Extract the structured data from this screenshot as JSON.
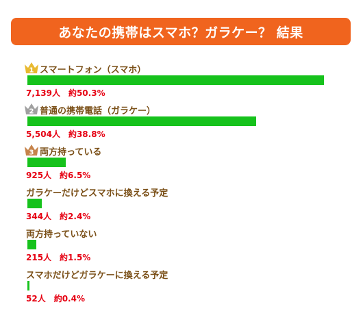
{
  "title": "あなたの携帯はスマホ？ガラケー？ 結果",
  "colors": {
    "banner": "#F0641E",
    "bar": "#16C21C",
    "label": "#7A4F17",
    "value": "#E60012",
    "gold": "#E8B930",
    "silver": "#A0A0A0",
    "bronze": "#C6834A"
  },
  "chart_data": {
    "type": "bar",
    "orientation": "horizontal",
    "categories": [
      "スマートフォン（スマホ）",
      "普通の携帯電話（ガラケー）",
      "両方持っている",
      "ガラケーだけどスマホに換える予定",
      "両方持っていない",
      "スマホだけどガラケーに換える予定"
    ],
    "values": [
      7139,
      5504,
      925,
      344,
      215,
      52
    ],
    "percents": [
      50.3,
      38.8,
      6.5,
      2.4,
      1.5,
      0.4
    ],
    "value_labels": [
      "7,139人　約50.3%",
      "5,504人　約38.8%",
      "925人　約6.5%",
      "344人　約2.4%",
      "215人　約1.5%",
      "52人　約0.4%"
    ],
    "rank_icons": [
      "crown-gold-icon",
      "crown-silver-icon",
      "crown-bronze-icon"
    ],
    "rank_numbers": [
      "1",
      "2",
      "3"
    ]
  }
}
